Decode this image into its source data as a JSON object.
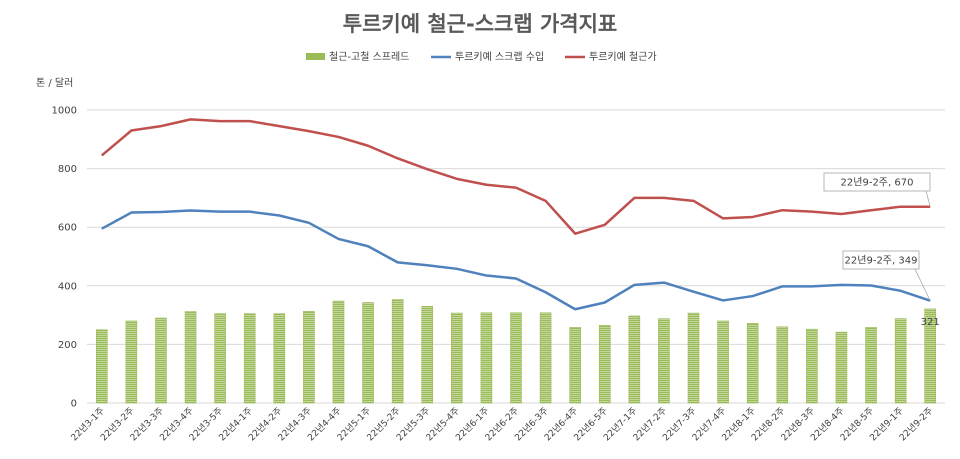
{
  "chart_data": {
    "type": "bar",
    "title": "투르키예 철근-스크랩 가격지표",
    "ylabel": "톤 / 달러",
    "xlabel": "",
    "ylim": [
      0,
      1000
    ],
    "yticks": [
      0,
      200,
      400,
      600,
      800,
      1000
    ],
    "grid": true,
    "legend_position": "top",
    "categories": [
      "22년3-1주",
      "22년3-2주",
      "22년3-3주",
      "22년3-4주",
      "22년3-5주",
      "22년4-1주",
      "22년4-2주",
      "22년4-3주",
      "22년4-4주",
      "22년5-1주",
      "22년5-2주",
      "22년5-3주",
      "22년5-4주",
      "22년6-1주",
      "22년6-2주",
      "22년6-3주",
      "22년6-4주",
      "22년6-5주",
      "22년7-1주",
      "22년7-2주",
      "22년7-3주",
      "22년7-4주",
      "22년8-1주",
      "22년8-2주",
      "22년8-3주",
      "22년8-4주",
      "22년8-5주",
      "22년9-1주",
      "22년9-2주"
    ],
    "series": [
      {
        "name": "철근-고철 스프레드",
        "kind": "bar",
        "color": "#9bbb59",
        "values": [
          250,
          280,
          290,
          312,
          305,
          305,
          305,
          313,
          348,
          343,
          353,
          330,
          307,
          308,
          308,
          308,
          258,
          265,
          297,
          288,
          307,
          280,
          272,
          260,
          252,
          242,
          258,
          288,
          321
        ]
      },
      {
        "name": "투르키예 스크랩 수입",
        "kind": "line",
        "color": "#4f81bd",
        "values": [
          595,
          650,
          652,
          657,
          653,
          653,
          640,
          615,
          560,
          535,
          480,
          470,
          458,
          435,
          425,
          378,
          320,
          343,
          403,
          411,
          380,
          350,
          365,
          398,
          398,
          403,
          401,
          383,
          349
        ]
      },
      {
        "name": "투르키예 철근가",
        "kind": "line",
        "color": "#c0504d",
        "values": [
          845,
          930,
          945,
          968,
          962,
          962,
          945,
          928,
          908,
          878,
          835,
          798,
          765,
          745,
          735,
          690,
          578,
          608,
          700,
          700,
          690,
          630,
          635,
          658,
          653,
          645,
          658,
          670,
          670
        ]
      }
    ],
    "annotations": [
      {
        "text": "22년9-2주, 670",
        "series": "투르키예 철근가",
        "index": 28
      },
      {
        "text": "22년9-2주, 349",
        "series": "투르키예 스크랩 수입",
        "index": 28
      },
      {
        "text": "321",
        "series": "철근-고철 스프레드",
        "index": 28
      }
    ]
  }
}
